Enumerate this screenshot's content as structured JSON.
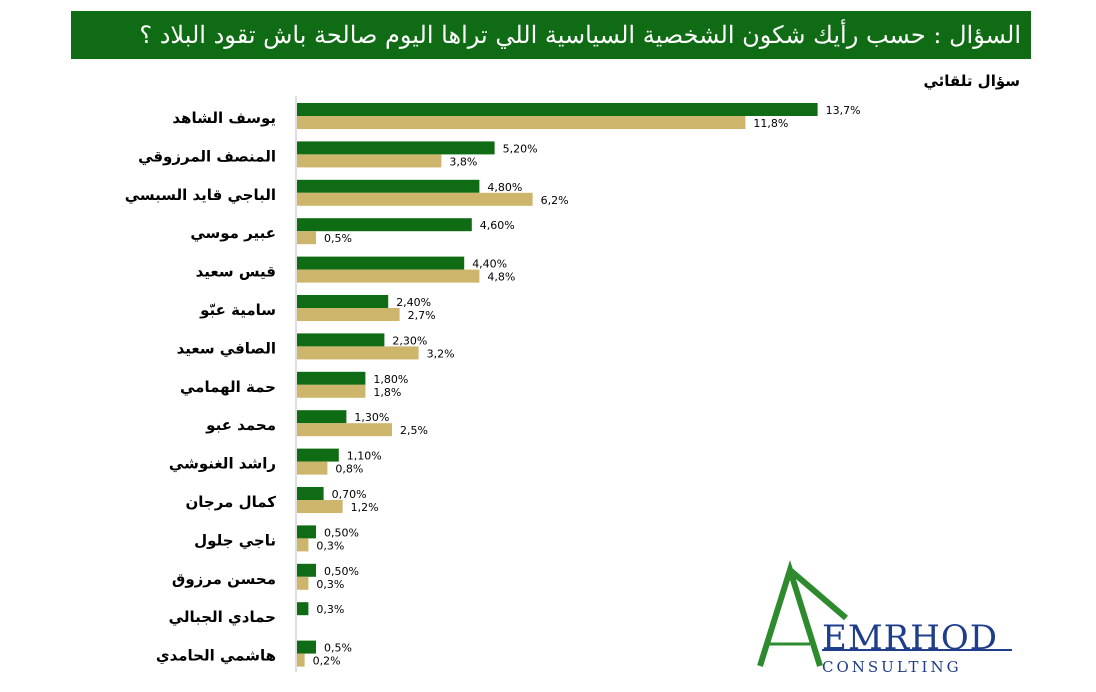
{
  "header": {
    "question": "السؤال :  حسب رأيك شكون الشخصية  السياسية اللي تراها اليوم صالحة باش تقود البلاد ؟"
  },
  "subtitle": "سؤال تلقائي",
  "logo": {
    "name": "EMRHOD",
    "tagline": "CONSULTING"
  },
  "colors": {
    "series_green": "#0f6b14",
    "series_tan": "#cdb56c",
    "header_bg": "#0f6b14"
  },
  "chart_data": {
    "type": "bar",
    "orientation": "horizontal",
    "categories": [
      "يوسف الشاهد",
      "المنصف المرزوقي",
      "الباجي قايد السبسي",
      "عبير موسي",
      "قيس سعيد",
      "سامية عبّو",
      "الصافي سعيد",
      "حمة الهمامي",
      "محمد عبو",
      "راشد الغنوشي",
      "كمال مرجان",
      "ناجي جلول",
      "محسن مرزوق",
      "حمادي الجبالي",
      "هاشمي الحامدي"
    ],
    "series": [
      {
        "values": [
          13.7,
          5.2,
          4.8,
          4.6,
          4.4,
          2.4,
          2.3,
          1.8,
          1.3,
          1.1,
          0.7,
          0.5,
          0.5,
          0.3,
          0.5
        ],
        "labels": [
          "13,7%",
          "5,20%",
          "4,80%",
          "4,60%",
          "4,40%",
          "2,40%",
          "2,30%",
          "1,80%",
          "1,30%",
          "1,10%",
          "0,70%",
          "0,50%",
          "0,50%",
          "0,3%",
          "0,5%"
        ]
      },
      {
        "values": [
          11.8,
          3.8,
          6.2,
          0.5,
          4.8,
          2.7,
          3.2,
          1.8,
          2.5,
          0.8,
          1.2,
          0.3,
          0.3,
          null,
          0.2
        ],
        "labels": [
          "11,8%",
          "3,8%",
          "6,2%",
          "0,5%",
          "4,8%",
          "2,7%",
          "3,2%",
          "1,8%",
          "2,5%",
          "0,8%",
          "1,2%",
          "0,3%",
          "0,3%",
          "",
          "0,2%"
        ]
      }
    ],
    "legend": "none",
    "grid": false
  }
}
